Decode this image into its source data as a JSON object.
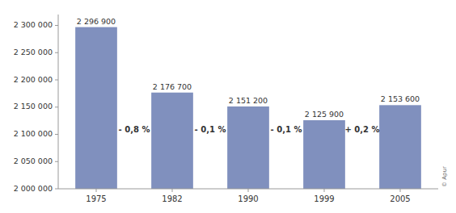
{
  "chart_data": {
    "type": "bar",
    "categories": [
      "1975",
      "1982",
      "1990",
      "1999",
      "2005"
    ],
    "values": [
      2296900,
      2176700,
      2151200,
      2125900,
      2153600
    ],
    "value_labels": [
      "2 296 900",
      "2 176 700",
      "2 151 200",
      "2 125 900",
      "2 153 600"
    ],
    "data_labels": true,
    "color": "#8090be",
    "ylim": [
      2000000,
      2320000
    ],
    "yticks": [
      {
        "value": 2000000,
        "label": "2 000 000"
      },
      {
        "value": 2050000,
        "label": "2 050 000"
      },
      {
        "value": 2100000,
        "label": "2 100 000"
      },
      {
        "value": 2150000,
        "label": "2 150 000"
      },
      {
        "value": 2200000,
        "label": "2 200 000"
      },
      {
        "value": 2250000,
        "label": "2 250 000"
      },
      {
        "value": 2300000,
        "label": "2 300 000"
      }
    ],
    "grid": false,
    "annotations": [
      "- 0,8 %",
      "- 0,1 %",
      "- 0,1 %",
      "+ 0,2 %"
    ],
    "watermark": "© Apur"
  }
}
